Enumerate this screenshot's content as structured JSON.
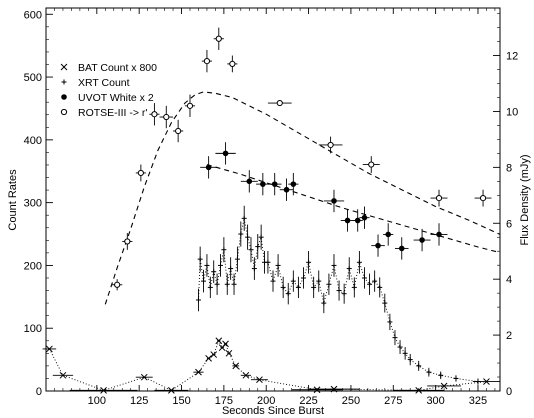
{
  "chart_data": {
    "type": "scatter",
    "xlabel": "Seconds Since Burst",
    "ylabel": "Count Rates",
    "y2label": "Flux Density (mJy)",
    "xlim": [
      70,
      338
    ],
    "ylim": [
      0,
      610
    ],
    "y2lim": [
      0,
      13.7
    ],
    "x_ticks": [
      100,
      125,
      150,
      175,
      200,
      225,
      250,
      275,
      300,
      325
    ],
    "y_ticks": [
      0,
      100,
      200,
      300,
      400,
      500,
      600
    ],
    "y2_ticks": [
      0,
      2,
      4,
      6,
      8,
      10,
      12
    ],
    "grid": false,
    "legend_position": "upper-left",
    "legend": [
      {
        "name": "BAT Count x 800",
        "marker": "x"
      },
      {
        "name": "XRT Count",
        "marker": "+"
      },
      {
        "name": "UVOT White x 2",
        "marker": "filled-circle"
      },
      {
        "name": "ROTSE-III -> r'",
        "marker": "open-circle"
      }
    ],
    "series": [
      {
        "name": "BAT Count x 800",
        "marker": "x",
        "x": [
          72,
          80,
          104,
          128,
          144,
          160,
          166,
          169,
          172,
          174,
          176,
          178,
          182,
          188,
          196,
          230,
          240,
          290,
          305,
          330
        ],
        "y": [
          67,
          25,
          1,
          22,
          1,
          30,
          52,
          58,
          80,
          69,
          75,
          60,
          40,
          25,
          18,
          2,
          3,
          1,
          8,
          15
        ],
        "xerr": [
          4,
          6,
          20,
          5,
          10,
          3,
          1,
          1,
          1,
          1,
          1,
          1,
          2,
          3,
          5,
          15,
          15,
          15,
          10,
          8
        ]
      },
      {
        "name": "XRT Count",
        "marker": "+",
        "x": [
          160,
          161,
          163,
          165,
          167,
          169,
          171,
          173,
          175,
          177,
          179,
          181,
          183,
          185,
          187,
          189,
          191,
          193,
          195,
          197,
          199,
          201,
          204,
          207,
          210,
          213,
          216,
          219,
          222,
          225,
          228,
          231,
          234,
          237,
          240,
          243,
          246,
          249,
          252,
          255,
          258,
          261,
          264,
          267,
          270,
          273,
          276,
          279,
          282,
          285,
          290,
          296,
          303,
          312,
          325
        ],
        "y": [
          145,
          210,
          175,
          200,
          165,
          190,
          170,
          200,
          225,
          170,
          195,
          170,
          210,
          250,
          275,
          245,
          225,
          195,
          230,
          245,
          205,
          205,
          175,
          200,
          165,
          155,
          175,
          165,
          180,
          205,
          165,
          175,
          140,
          170,
          200,
          160,
          155,
          195,
          165,
          205,
          180,
          170,
          175,
          165,
          140,
          110,
          85,
          70,
          60,
          50,
          40,
          30,
          25,
          20,
          15
        ],
        "yerr": [
          18,
          20,
          18,
          18,
          17,
          18,
          17,
          18,
          20,
          17,
          18,
          17,
          20,
          20,
          20,
          20,
          20,
          18,
          20,
          20,
          18,
          18,
          17,
          18,
          17,
          17,
          17,
          17,
          17,
          18,
          17,
          17,
          16,
          17,
          18,
          16,
          16,
          18,
          16,
          18,
          17,
          17,
          17,
          16,
          15,
          13,
          12,
          11,
          10,
          9,
          8,
          7,
          6,
          5,
          5
        ]
      },
      {
        "name": "UVOT White x 2",
        "marker": "filled-circle",
        "x": [
          166,
          176,
          190,
          198,
          205,
          212,
          216,
          240,
          248,
          254,
          258,
          266,
          272,
          280,
          292,
          302
        ],
        "y": [
          8.0,
          8.5,
          7.5,
          7.4,
          7.4,
          7.2,
          7.4,
          6.8,
          6.1,
          6.1,
          6.2,
          5.2,
          5.6,
          5.1,
          5.4,
          5.6
        ],
        "xerr": [
          5,
          6,
          5,
          4,
          4,
          4,
          3,
          6,
          4,
          3,
          3,
          4,
          3,
          4,
          5,
          5
        ],
        "yerr": [
          0.4,
          0.4,
          0.4,
          0.4,
          0.4,
          0.4,
          0.4,
          0.4,
          0.4,
          0.4,
          0.4,
          0.4,
          0.4,
          0.4,
          0.4,
          0.4
        ]
      },
      {
        "name": "ROTSE-III -> r'",
        "marker": "open-circle",
        "x": [
          112,
          118,
          126,
          134,
          141,
          148,
          155,
          165,
          172,
          180,
          208,
          238,
          262,
          302,
          328
        ],
        "y": [
          3.8,
          5.35,
          7.8,
          9.9,
          9.8,
          9.3,
          10.2,
          11.8,
          12.6,
          11.7,
          10.3,
          8.8,
          8.1,
          6.9,
          6.9
        ],
        "xerr": [
          3,
          3,
          3,
          3,
          4,
          3,
          3,
          3,
          3,
          3,
          7,
          7,
          5,
          5,
          5
        ],
        "yerr": [
          0.2,
          0.3,
          0.3,
          0.4,
          0.4,
          0.4,
          0.4,
          0.4,
          0.4,
          0.3,
          0.1,
          0.3,
          0.3,
          0.3,
          0.3
        ]
      }
    ],
    "models": [
      {
        "style": "dashed",
        "axis": "right",
        "x": [
          105,
          112,
          120,
          128,
          136,
          144,
          152,
          158,
          163,
          170,
          180,
          200,
          220,
          240,
          260,
          280,
          300,
          320,
          338
        ],
        "y": [
          3.1,
          4.4,
          5.8,
          7.3,
          8.6,
          9.6,
          10.3,
          10.6,
          10.7,
          10.65,
          10.5,
          9.9,
          9.2,
          8.5,
          7.8,
          7.2,
          6.6,
          6.1,
          5.6
        ]
      },
      {
        "style": "dashed",
        "axis": "right",
        "x": [
          165,
          185,
          205,
          225,
          245,
          265,
          285,
          305,
          325,
          338
        ],
        "y": [
          8.1,
          7.75,
          7.35,
          6.95,
          6.55,
          6.2,
          5.85,
          5.5,
          5.15,
          4.95
        ]
      }
    ]
  }
}
